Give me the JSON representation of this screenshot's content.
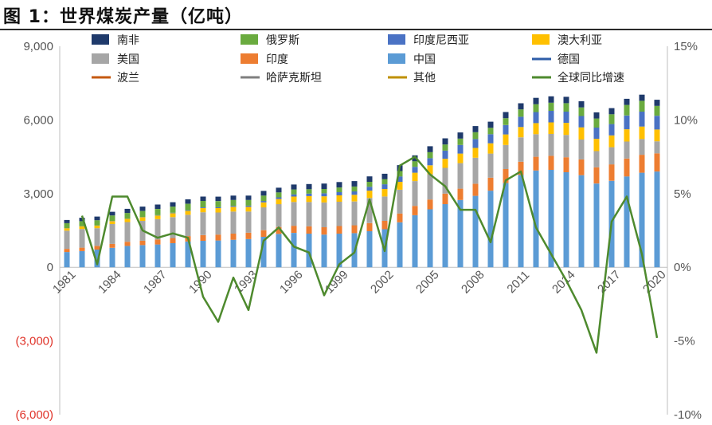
{
  "title": "图 1：世界煤炭产量（亿吨）",
  "chart_data": {
    "type": "bar",
    "stacked": true,
    "x": [
      1981,
      1982,
      1983,
      1984,
      1985,
      1986,
      1987,
      1988,
      1989,
      1990,
      1991,
      1992,
      1993,
      1994,
      1995,
      1996,
      1997,
      1998,
      1999,
      2000,
      2001,
      2002,
      2003,
      2004,
      2005,
      2006,
      2007,
      2008,
      2009,
      2010,
      2011,
      2012,
      2013,
      2014,
      2015,
      2016,
      2017,
      2018,
      2019,
      2020
    ],
    "x_tick_labels": [
      "1981",
      "1984",
      "1987",
      "1990",
      "1993",
      "1996",
      "1999",
      "2002",
      "2005",
      "2008",
      "2011",
      "2014",
      "2017",
      "2020"
    ],
    "y_left": {
      "lim": [
        -6000,
        9000
      ],
      "ticks": [
        "(6,000)",
        "(3,000)",
        "0",
        "3,000",
        "6,000",
        "9,000"
      ],
      "tick_values": [
        -6000,
        -3000,
        0,
        3000,
        6000,
        9000
      ]
    },
    "y_right": {
      "lim": [
        -10,
        15
      ],
      "ticks": [
        "-10%",
        "-5%",
        "0%",
        "5%",
        "10%",
        "15%"
      ],
      "tick_values": [
        -10,
        -5,
        0,
        5,
        10,
        15
      ]
    },
    "legend": [
      {
        "name": "南非",
        "color": "#1f3a6b",
        "kind": "bar"
      },
      {
        "name": "俄罗斯",
        "color": "#6aab3f",
        "kind": "bar"
      },
      {
        "name": "印度尼西亚",
        "color": "#4a72c4",
        "kind": "bar"
      },
      {
        "name": "澳大利亚",
        "color": "#ffc000",
        "kind": "bar"
      },
      {
        "name": "美国",
        "color": "#a6a6a6",
        "kind": "bar"
      },
      {
        "name": "印度",
        "color": "#ed7d31",
        "kind": "bar"
      },
      {
        "name": "中国",
        "color": "#5b9bd5",
        "kind": "bar"
      },
      {
        "name": "德国",
        "color": "#2e5da8",
        "kind": "line"
      },
      {
        "name": "波兰",
        "color": "#c55a11",
        "kind": "line"
      },
      {
        "name": "哈萨克斯坦",
        "color": "#7f7f7f",
        "kind": "line"
      },
      {
        "name": "其他",
        "color": "#bf9000",
        "kind": "line"
      },
      {
        "name": "全球同比增速",
        "color": "#4e8a2e",
        "kind": "line"
      }
    ],
    "stack_order": [
      "中国",
      "印度",
      "美国",
      "澳大利亚",
      "印度尼西亚",
      "俄罗斯",
      "南非"
    ],
    "series": [
      {
        "name": "中国",
        "values": [
          620,
          660,
          720,
          790,
          870,
          900,
          930,
          980,
          1050,
          1080,
          1090,
          1120,
          1150,
          1240,
          1360,
          1400,
          1370,
          1330,
          1370,
          1390,
          1470,
          1550,
          1830,
          2120,
          2360,
          2570,
          2740,
          2910,
          3120,
          3430,
          3760,
          3940,
          3970,
          3870,
          3750,
          3410,
          3520,
          3700,
          3850,
          3900
        ]
      },
      {
        "name": "印度",
        "values": [
          130,
          140,
          150,
          160,
          170,
          180,
          200,
          210,
          220,
          230,
          240,
          250,
          260,
          270,
          280,
          290,
          300,
          300,
          310,
          320,
          330,
          340,
          360,
          380,
          400,
          430,
          460,
          490,
          530,
          570,
          540,
          560,
          570,
          610,
          640,
          660,
          670,
          730,
          730,
          740
        ]
      },
      {
        "name": "美国",
        "values": [
          740,
          760,
          720,
          810,
          800,
          810,
          830,
          850,
          870,
          930,
          900,
          900,
          860,
          930,
          930,
          970,
          990,
          1010,
          990,
          970,
          1020,
          990,
          970,
          1010,
          1030,
          1050,
          1040,
          1060,
          980,
          980,
          990,
          920,
          890,
          910,
          810,
          660,
          700,
          690,
          640,
          490
        ]
      },
      {
        "name": "澳大利亚",
        "values": [
          100,
          110,
          110,
          120,
          130,
          150,
          150,
          160,
          160,
          170,
          180,
          190,
          190,
          200,
          210,
          220,
          240,
          250,
          260,
          270,
          300,
          310,
          320,
          340,
          360,
          370,
          390,
          400,
          420,
          430,
          420,
          450,
          470,
          490,
          500,
          500,
          480,
          500,
          510,
          480
        ]
      },
      {
        "name": "印度尼西亚",
        "values": [
          5,
          5,
          5,
          10,
          10,
          10,
          15,
          20,
          25,
          30,
          35,
          40,
          50,
          60,
          70,
          90,
          100,
          120,
          130,
          140,
          160,
          190,
          220,
          240,
          290,
          330,
          350,
          360,
          370,
          380,
          420,
          450,
          470,
          460,
          460,
          460,
          460,
          560,
          610,
          560
        ]
      },
      {
        "name": "俄罗斯",
        "values": [
          200,
          200,
          210,
          220,
          230,
          240,
          250,
          250,
          260,
          260,
          250,
          240,
          230,
          220,
          200,
          200,
          180,
          180,
          190,
          200,
          200,
          210,
          220,
          230,
          250,
          250,
          260,
          280,
          260,
          280,
          300,
          320,
          330,
          340,
          350,
          370,
          400,
          430,
          440,
          400
        ]
      },
      {
        "name": "南非",
        "values": [
          130,
          140,
          150,
          150,
          170,
          180,
          180,
          180,
          180,
          180,
          180,
          180,
          180,
          190,
          190,
          200,
          210,
          220,
          220,
          220,
          220,
          220,
          240,
          240,
          240,
          250,
          250,
          250,
          250,
          250,
          250,
          260,
          260,
          260,
          250,
          250,
          250,
          250,
          250,
          250
        ]
      }
    ],
    "growth_series": {
      "name": "全球同比增速",
      "values": [
        null,
        3.5,
        0.2,
        4.8,
        4.8,
        2.5,
        2.0,
        2.3,
        2.0,
        -2.0,
        -3.7,
        -0.7,
        -2.9,
        1.8,
        2.7,
        1.4,
        1.0,
        -1.9,
        0.2,
        1.0,
        4.6,
        1.1,
        6.9,
        7.5,
        6.3,
        5.5,
        3.9,
        3.9,
        1.7,
        5.9,
        6.5,
        2.7,
        0.9,
        -0.9,
        -2.9,
        -5.8,
        3.1,
        4.8,
        0.9,
        -4.8
      ]
    },
    "grid": false,
    "legend_position": "top"
  }
}
